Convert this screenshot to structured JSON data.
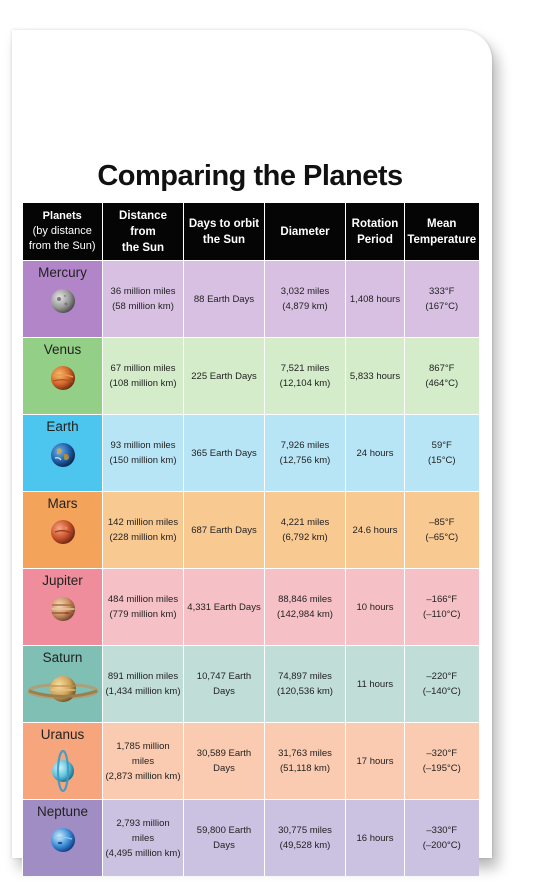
{
  "title": "Comparing the Planets",
  "headers": {
    "planets": [
      "Planets",
      "(by distance",
      "from the Sun)"
    ],
    "distance": [
      "Distance from",
      "the Sun"
    ],
    "orbit": [
      "Days to orbit",
      "the Sun"
    ],
    "diameter": [
      "Diameter"
    ],
    "rotation": [
      "Rotation",
      "Period"
    ],
    "temperature": [
      "Mean",
      "Temperature"
    ]
  },
  "planets": [
    {
      "name": "Mercury",
      "icon": "mercury-icon",
      "dist_mi": "36 million miles",
      "dist_km": "(58 million km)",
      "orbit": "88 Earth Days",
      "dia_mi": "3,032 miles",
      "dia_km": "(4,879 km)",
      "rotation": "1,408 hours",
      "temp_f": "333°F",
      "temp_c": "(167°C)",
      "dark": "#b185c8",
      "light": "#d8c0e2"
    },
    {
      "name": "Venus",
      "icon": "venus-icon",
      "dist_mi": "67 million miles",
      "dist_km": "(108 million km)",
      "orbit": "225 Earth Days",
      "dia_mi": "7,521 miles",
      "dia_km": "(12,104 km)",
      "rotation": "5,833 hours",
      "temp_f": "867°F",
      "temp_c": "(464°C)",
      "dark": "#93cf86",
      "light": "#d4ecc9"
    },
    {
      "name": "Earth",
      "icon": "earth-icon",
      "dist_mi": "93 million miles",
      "dist_km": "(150 million km)",
      "orbit": "365 Earth Days",
      "dia_mi": "7,926 miles",
      "dia_km": "(12,756 km)",
      "rotation": "24 hours",
      "temp_f": "59°F",
      "temp_c": "(15°C)",
      "dark": "#4cc6ef",
      "light": "#b7e5f6"
    },
    {
      "name": "Mars",
      "icon": "mars-icon",
      "dist_mi": "142 million miles",
      "dist_km": "(228 million km)",
      "orbit": "687 Earth Days",
      "dia_mi": "4,221 miles",
      "dia_km": "(6,792 km)",
      "rotation": "24.6 hours",
      "temp_f": "–85°F",
      "temp_c": "(–65°C)",
      "dark": "#f4a35a",
      "light": "#f9c992"
    },
    {
      "name": "Jupiter",
      "icon": "jupiter-icon",
      "dist_mi": "484 million miles",
      "dist_km": "(779 million km)",
      "orbit": "4,331 Earth Days",
      "dia_mi": "88,846 miles",
      "dia_km": "(142,984 km)",
      "rotation": "10 hours",
      "temp_f": "–166°F",
      "temp_c": "(–110°C)",
      "dark": "#ef8d9c",
      "light": "#f6c1c6"
    },
    {
      "name": "Saturn",
      "icon": "saturn-icon",
      "dist_mi": "891 million miles",
      "dist_km": "(1,434 million km)",
      "orbit": "10,747 Earth Days",
      "dia_mi": "74,897 miles",
      "dia_km": "(120,536 km)",
      "rotation": "11 hours",
      "temp_f": "–220°F",
      "temp_c": "(–140°C)",
      "dark": "#7fbfb4",
      "light": "#c1ddd8"
    },
    {
      "name": "Uranus",
      "icon": "uranus-icon",
      "dist_mi": "1,785 million miles",
      "dist_km": "(2,873 million km)",
      "orbit": "30,589 Earth Days",
      "dia_mi": "31,763 miles",
      "dia_km": "(51,118 km)",
      "rotation": "17 hours",
      "temp_f": "–320°F",
      "temp_c": "(–195°C)",
      "dark": "#f6a57c",
      "light": "#fbcbb1"
    },
    {
      "name": "Neptune",
      "icon": "neptune-icon",
      "dist_mi": "2,793 million miles",
      "dist_km": "(4,495 million km)",
      "orbit": "59,800 Earth Days",
      "dia_mi": "30,775 miles",
      "dia_km": "(49,528 km)",
      "rotation": "16 hours",
      "temp_f": "–330°F",
      "temp_c": "(–200°C)",
      "dark": "#9f8dc4",
      "light": "#cbc1e1"
    }
  ]
}
